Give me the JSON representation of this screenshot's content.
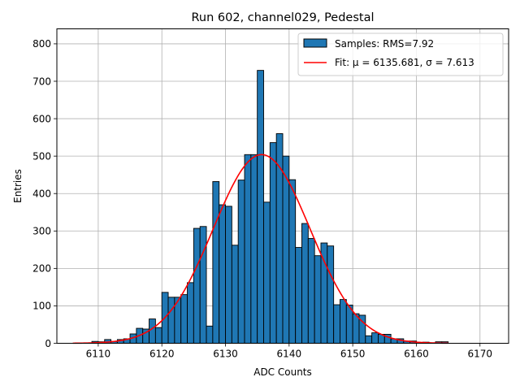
{
  "chart_data": {
    "type": "bar",
    "title": "Run 602, channel029, Pedestal",
    "xlabel": "ADC Counts",
    "ylabel": "Entries",
    "xlim": [
      6103.5,
      6174.5
    ],
    "ylim": [
      0,
      840
    ],
    "xticks": [
      6110,
      6120,
      6130,
      6140,
      6150,
      6160,
      6170
    ],
    "yticks": [
      0,
      100,
      200,
      300,
      400,
      500,
      600,
      700,
      800
    ],
    "grid": true,
    "legend_position": "top-right",
    "bin_edges_start": 6106,
    "bin_width": 1,
    "histogram_values": [
      0,
      0,
      1,
      5,
      4,
      10,
      5,
      10,
      12,
      25,
      40,
      38,
      65,
      42,
      136,
      123,
      123,
      130,
      162,
      307,
      312,
      46,
      432,
      370,
      366,
      262,
      436,
      504,
      504,
      729,
      377,
      536,
      560,
      500,
      437,
      256,
      320,
      280,
      234,
      268,
      260,
      103,
      117,
      102,
      79,
      75,
      20,
      28,
      24,
      24,
      12,
      12,
      6,
      6,
      2,
      3,
      1,
      4,
      4,
      0
    ],
    "series": [
      {
        "name": "Samples: RMS=7.92",
        "kind": "histogram",
        "color": "#1f77b4"
      },
      {
        "name": "Fit: μ = 6135.681, σ = 7.613",
        "kind": "gaussian",
        "color": "#ff0000",
        "mu": 6135.681,
        "sigma": 7.613,
        "amplitude": 504,
        "x_range": [
          6106,
          6165
        ]
      }
    ]
  }
}
